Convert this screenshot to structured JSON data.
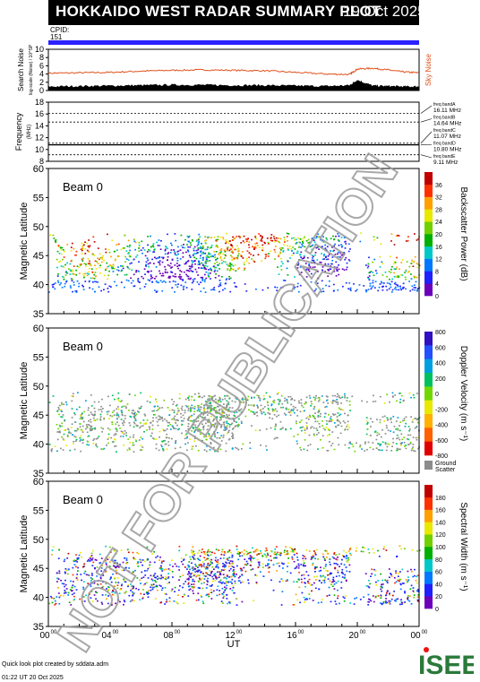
{
  "header": {
    "title": "HOKKAIDO WEST RADAR SUMMARY PLOT",
    "date": "19 Oct 2025",
    "cpid_label": "CPID:",
    "cpid_value": "151",
    "band_color": "#2b22ff"
  },
  "footer": {
    "line1": "Quick look plot created by sddata.adm",
    "line2": "01:22 UT 20 Oct 2025"
  },
  "logo": {
    "text": "ISEE",
    "color": "#2a7a3a",
    "accent": "#e11"
  },
  "watermark": "NOT FOR PUBLICATION",
  "chart_data": [
    {
      "id": "noise",
      "type": "line",
      "ylabel": "Search Noise",
      "ylabel2": "log-scale (Noise) / 10^SP",
      "right_label": "Sky Noise",
      "right_label_color": "#e0501a",
      "yticks": [
        0,
        2,
        4,
        6,
        8,
        10
      ],
      "ylim": [
        0,
        10
      ],
      "series": [
        {
          "name": "Sky Noise",
          "color": "#e0501a",
          "x": [
            0,
            2,
            4,
            6,
            8,
            10,
            12,
            14,
            16,
            18,
            19.5,
            20,
            21,
            22,
            23,
            24
          ],
          "values": [
            4.2,
            4.3,
            4.4,
            4.7,
            4.9,
            5.0,
            4.9,
            4.8,
            4.4,
            4.0,
            3.9,
            5.2,
            5.4,
            5.0,
            4.5,
            4.3
          ]
        },
        {
          "name": "Search Noise",
          "color": "#000000",
          "x": [
            0,
            2,
            4,
            6,
            8,
            10,
            12,
            14,
            16,
            18,
            19.5,
            20,
            21,
            22,
            23,
            24
          ],
          "values": [
            0.9,
            1.0,
            1.1,
            1.2,
            1.3,
            1.3,
            1.2,
            1.2,
            1.1,
            1.0,
            1.2,
            2.5,
            1.1,
            1.0,
            0.9,
            0.9
          ]
        }
      ]
    },
    {
      "id": "frequency",
      "type": "line",
      "ylabel": "Frequency",
      "ylabel2": "(MHz)",
      "yticks": [
        8,
        10,
        12,
        14,
        16,
        18
      ],
      "ylim": [
        8,
        18
      ],
      "bands": [
        {
          "label": "freq bandA",
          "value_label": "16.11 MHz",
          "value": 16.11
        },
        {
          "label": "freq bandB",
          "value_label": "14.64 MHz",
          "value": 14.64
        },
        {
          "label": "freq bandC",
          "value_label": "11.07 MHz",
          "value": 11.07
        },
        {
          "label": "freq bandD",
          "value_label": "10.80 MHz",
          "value": 10.8
        },
        {
          "label": "freq bandE",
          "value_label": "9.11 MHz",
          "value": 9.11
        }
      ],
      "active_freq": 10.8
    },
    {
      "id": "power",
      "type": "heatmap",
      "beam_label": "Beam  0",
      "ylabel": "Magnetic Latitude",
      "yticks": [
        35,
        40,
        45,
        50,
        55,
        60
      ],
      "ylim": [
        35,
        60
      ],
      "colorbar_label": "Backscatter Power (dB)",
      "colorbar_ticks": [
        "0",
        "4",
        "8",
        "12",
        "16",
        "20",
        "24",
        "28",
        "32",
        "36"
      ],
      "colorbar_colors": [
        "#6a00b8",
        "#2020ff",
        "#0078ff",
        "#00c8c8",
        "#00b000",
        "#70d000",
        "#e8e800",
        "#ffa000",
        "#ff3000",
        "#c00000"
      ],
      "ground_scatter": false
    },
    {
      "id": "velocity",
      "type": "heatmap",
      "beam_label": "Beam  0",
      "ylabel": "Magnetic Latitude",
      "yticks": [
        35,
        40,
        45,
        50,
        55,
        60
      ],
      "ylim": [
        35,
        60
      ],
      "colorbar_label": "Doppler Velocity (m s⁻¹)",
      "colorbar_ticks": [
        "800",
        "600",
        "400",
        "200",
        "0",
        "-200",
        "-400",
        "-600",
        "-800"
      ],
      "colorbar_colors": [
        "#3010c0",
        "#2050ff",
        "#00a0e0",
        "#00c060",
        "#70d800",
        "#e8e800",
        "#ffb000",
        "#ff6000",
        "#e00000"
      ],
      "ground_scatter": true,
      "ground_label": "Ground",
      "ground_label2": "Scatter",
      "ground_color": "#8c8c8c"
    },
    {
      "id": "width",
      "type": "heatmap",
      "beam_label": "Beam  0",
      "ylabel": "Magnetic Latitude",
      "yticks": [
        35,
        40,
        45,
        50,
        55,
        60
      ],
      "ylim": [
        35,
        60
      ],
      "colorbar_label": "Spectral Width (m s⁻¹)",
      "colorbar_ticks": [
        "0",
        "20",
        "40",
        "60",
        "80",
        "100",
        "120",
        "140",
        "160",
        "180"
      ],
      "colorbar_colors": [
        "#6a00b8",
        "#2020ff",
        "#0078ff",
        "#00c8c8",
        "#00b000",
        "#70d000",
        "#e8e800",
        "#ffa000",
        "#ff3000",
        "#c00000"
      ],
      "ground_scatter": false,
      "xlabel": "UT",
      "xticks": [
        {
          "value": 0,
          "label": "00",
          "sup": "00"
        },
        {
          "value": 4,
          "label": "04",
          "sup": "00"
        },
        {
          "value": 8,
          "label": "08",
          "sup": "00"
        },
        {
          "value": 12,
          "label": "12",
          "sup": "00"
        },
        {
          "value": 16,
          "label": "16",
          "sup": "00"
        },
        {
          "value": 20,
          "label": "20",
          "sup": "00"
        },
        {
          "value": 24,
          "label": "00",
          "sup": "00"
        }
      ],
      "xlim": [
        0,
        24
      ]
    }
  ]
}
